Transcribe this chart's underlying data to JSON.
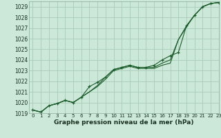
{
  "background_color": "#cce8d8",
  "grid_color": "#aacbb8",
  "line_color": "#1a5c2a",
  "xlim": [
    -0.5,
    23
  ],
  "ylim": [
    1019,
    1029.5
  ],
  "yticks": [
    1019,
    1020,
    1021,
    1022,
    1023,
    1024,
    1025,
    1026,
    1027,
    1028,
    1029
  ],
  "xticks": [
    0,
    1,
    2,
    3,
    4,
    5,
    6,
    7,
    8,
    9,
    10,
    11,
    12,
    13,
    14,
    15,
    16,
    17,
    18,
    19,
    20,
    21,
    22,
    23
  ],
  "series": [
    [
      1019.3,
      1019.1,
      1019.7,
      1019.9,
      1020.2,
      1020.0,
      1020.5,
      1021.0,
      1021.5,
      1022.2,
      1023.0,
      1023.2,
      1023.4,
      1023.2,
      1023.2,
      1023.2,
      1023.5,
      1023.7,
      1025.9,
      1027.1,
      1028.2,
      1029.0,
      1029.3,
      1029.4
    ],
    [
      1019.3,
      1019.1,
      1019.7,
      1019.9,
      1020.2,
      1020.0,
      1020.5,
      1021.5,
      1021.9,
      1022.4,
      1023.1,
      1023.3,
      1023.5,
      1023.3,
      1023.3,
      1023.5,
      1024.0,
      1024.4,
      1024.7,
      1027.2,
      1028.2,
      1029.0,
      1029.3,
      1029.4
    ],
    [
      1019.3,
      1019.1,
      1019.7,
      1019.9,
      1020.2,
      1020.0,
      1020.5,
      1021.0,
      1021.6,
      1022.4,
      1023.1,
      1023.3,
      1023.5,
      1023.3,
      1023.3,
      1023.3,
      1023.7,
      1024.0,
      1025.9,
      1027.2,
      1028.2,
      1029.0,
      1029.3,
      1029.4
    ]
  ],
  "xlabel": "Graphe pression niveau de la mer (hPa)",
  "xlabel_fontsize": 6.5,
  "tick_fontsize": 5.0,
  "ytick_fontsize": 5.5
}
